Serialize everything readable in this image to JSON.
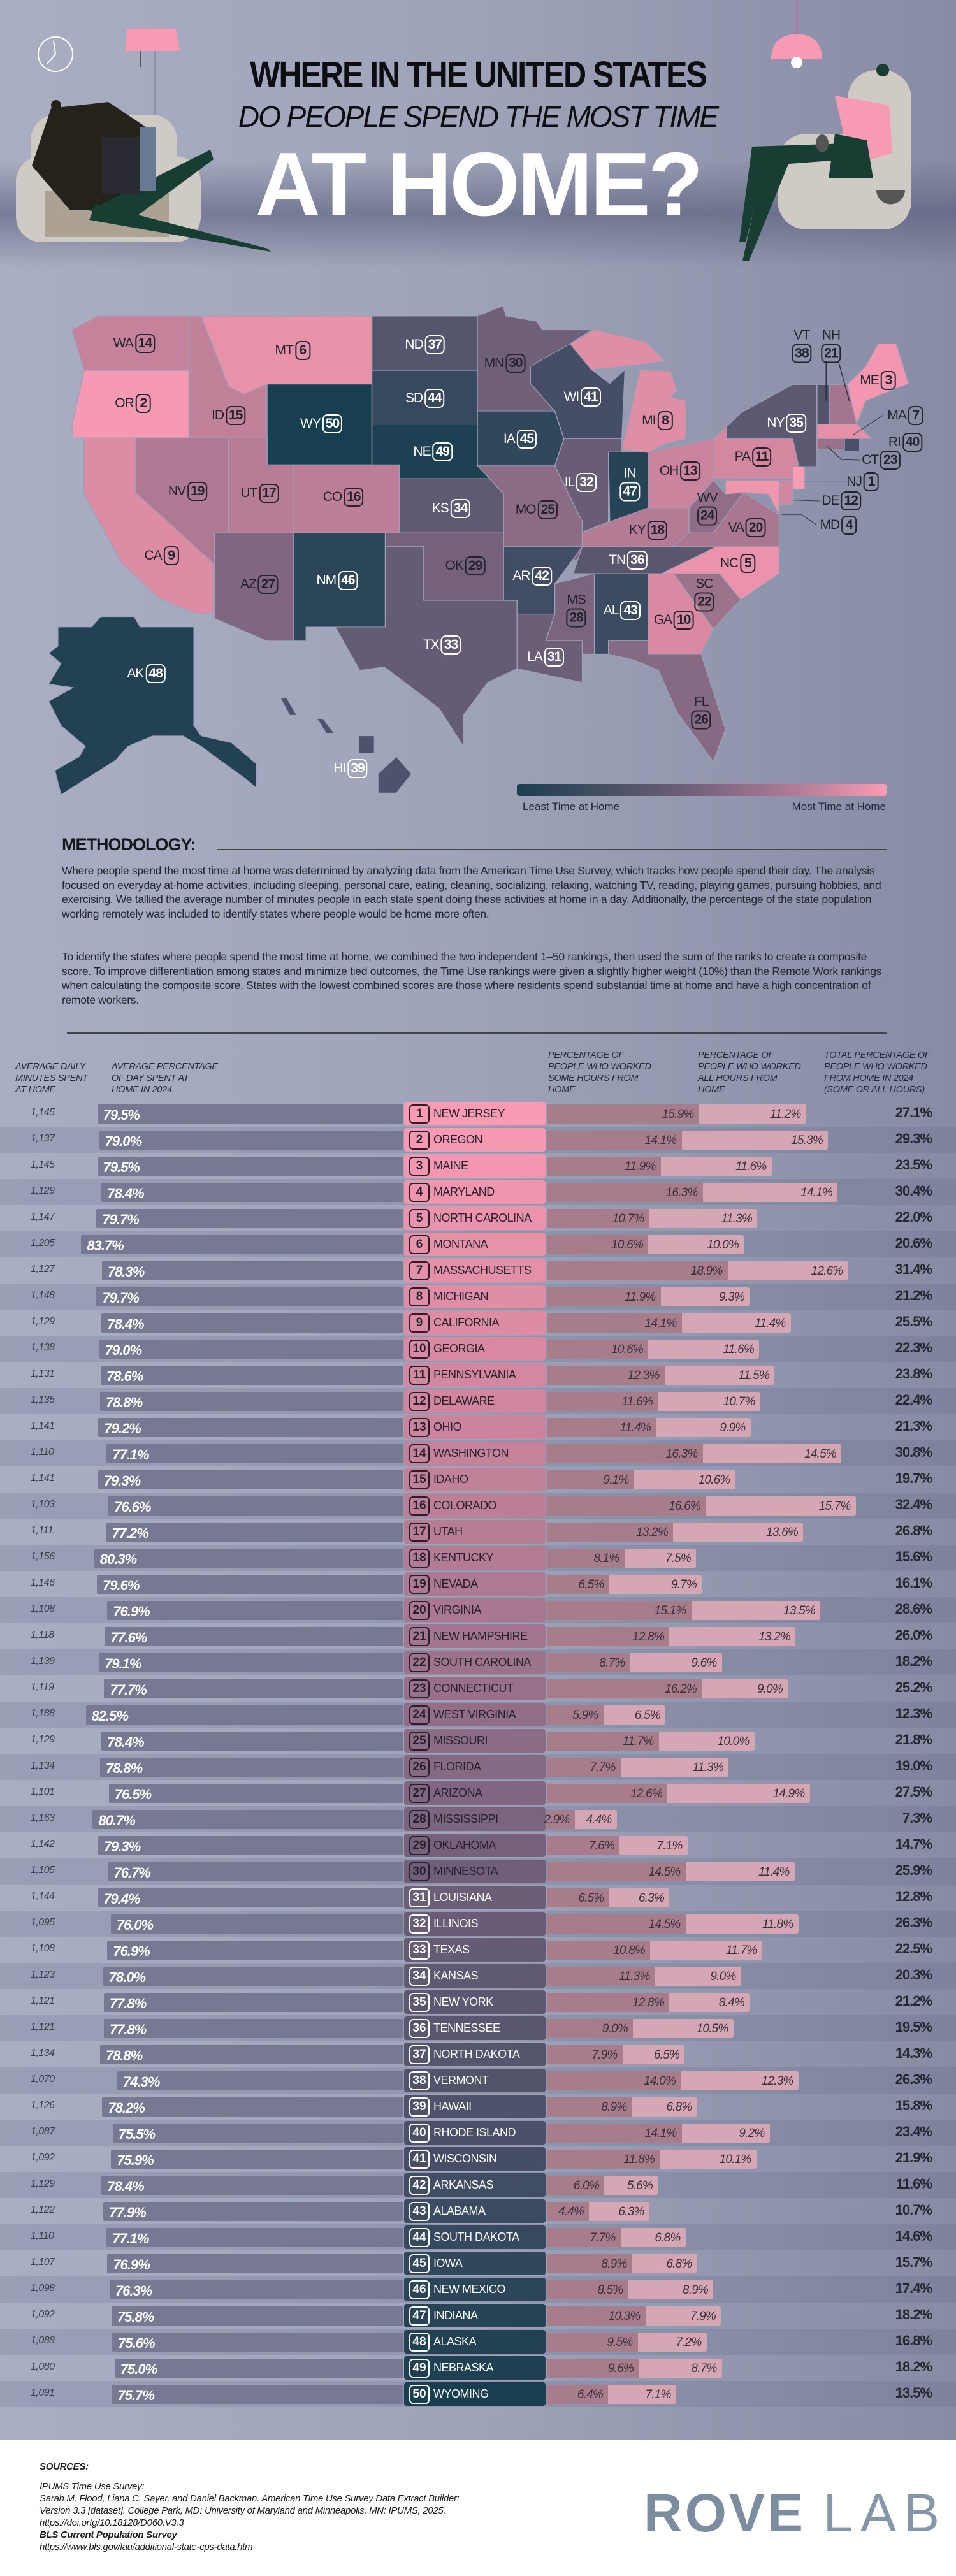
{
  "header": {
    "line1": "WHERE IN THE UNITED STATES",
    "line2": "DO PEOPLE SPEND THE MOST TIME",
    "line3": "AT HOME?"
  },
  "legend": {
    "least": "Least Time at Home",
    "most": "Most Time at Home",
    "colors": [
      "#1c3e4e",
      "#6d5e78",
      "#b07b95",
      "#fa9bb4"
    ]
  },
  "methodology": {
    "title": "METHODOLOGY:",
    "p1": "Where people spend the most time at home was determined by analyzing data from the American Time Use Survey, which tracks how people spend their day. The analysis focused on everyday at-home activities, including sleeping, personal care, eating, cleaning, socializing, relaxing, watching TV, reading, playing games, pursuing hobbies, and exercising. We tallied the average number of minutes people in each state spent doing these activities at home in a day. Additionally, the percentage of the state population working remotely was included to identify states where people would be home more often.",
    "p2": "To identify the states where people spend the most time at home, we combined the two independent 1–50 rankings, then used the sum of the ranks to create a composite score. To improve differentiation among states and minimize tied outcomes, the Time Use rankings were given a slightly higher weight (10%) than the Remote Work rankings when calculating the composite score. States with the lowest combined scores are those where residents spend substantial time at home and have a high concentration of remote workers."
  },
  "table": {
    "headers": {
      "minutes": "AVERAGE DAILY\nMINUTES SPENT\nAT HOME",
      "pct_day": "AVERAGE PERCENTAGE\nOF DAY SPENT AT\nHOME IN 2024",
      "some": "PERCENTAGE OF\nPEOPLE WHO WORKED\nSOME HOURS FROM\nHOME",
      "all": "PERCENTAGE OF\nPEOPLE WHO WORKED\nALL HOURS FROM\nHOME",
      "total": "TOTAL PERCENTAGE OF\nPEOPLE WHO WORKED\nFROM HOME IN 2024\n(SOME OR ALL HOURS)"
    }
  },
  "chart_data": {
    "type": "table",
    "columns": [
      "rank",
      "state",
      "abbr",
      "minutes",
      "pct_day",
      "some",
      "all",
      "total"
    ],
    "rows": [
      {
        "rank": "1",
        "state": "NEW JERSEY",
        "abbr": "NJ",
        "minutes": "1,145",
        "pct_day": "79.5%",
        "some": "15.9%",
        "all": "11.2%",
        "total": "27.1%"
      },
      {
        "rank": "2",
        "state": "OREGON",
        "abbr": "OR",
        "minutes": "1,137",
        "pct_day": "79.0%",
        "some": "14.1%",
        "all": "15.3%",
        "total": "29.3%"
      },
      {
        "rank": "3",
        "state": "MAINE",
        "abbr": "ME",
        "minutes": "1,145",
        "pct_day": "79.5%",
        "some": "11.9%",
        "all": "11.6%",
        "total": "23.5%"
      },
      {
        "rank": "4",
        "state": "MARYLAND",
        "abbr": "MD",
        "minutes": "1,129",
        "pct_day": "78.4%",
        "some": "16.3%",
        "all": "14.1%",
        "total": "30.4%"
      },
      {
        "rank": "5",
        "state": "NORTH CAROLINA",
        "abbr": "NC",
        "minutes": "1,147",
        "pct_day": "79.7%",
        "some": "10.7%",
        "all": "11.3%",
        "total": "22.0%"
      },
      {
        "rank": "6",
        "state": "MONTANA",
        "abbr": "MT",
        "minutes": "1,205",
        "pct_day": "83.7%",
        "some": "10.6%",
        "all": "10.0%",
        "total": "20.6%"
      },
      {
        "rank": "7",
        "state": "MASSACHUSETTS",
        "abbr": "MA",
        "minutes": "1,127",
        "pct_day": "78.3%",
        "some": "18.9%",
        "all": "12.6%",
        "total": "31.4%"
      },
      {
        "rank": "8",
        "state": "MICHIGAN",
        "abbr": "MI",
        "minutes": "1,148",
        "pct_day": "79.7%",
        "some": "11.9%",
        "all": "9.3%",
        "total": "21.2%"
      },
      {
        "rank": "9",
        "state": "CALIFORNIA",
        "abbr": "CA",
        "minutes": "1,129",
        "pct_day": "78.4%",
        "some": "14.1%",
        "all": "11.4%",
        "total": "25.5%"
      },
      {
        "rank": "10",
        "state": "GEORGIA",
        "abbr": "GA",
        "minutes": "1,138",
        "pct_day": "79.0%",
        "some": "10.6%",
        "all": "11.6%",
        "total": "22.3%"
      },
      {
        "rank": "11",
        "state": "PENNSYLVANIA",
        "abbr": "PA",
        "minutes": "1,131",
        "pct_day": "78.6%",
        "some": "12.3%",
        "all": "11.5%",
        "total": "23.8%"
      },
      {
        "rank": "12",
        "state": "DELAWARE",
        "abbr": "DE",
        "minutes": "1,135",
        "pct_day": "78.8%",
        "some": "11.6%",
        "all": "10.7%",
        "total": "22.4%"
      },
      {
        "rank": "13",
        "state": "OHIO",
        "abbr": "OH",
        "minutes": "1,141",
        "pct_day": "79.2%",
        "some": "11.4%",
        "all": "9.9%",
        "total": "21.3%"
      },
      {
        "rank": "14",
        "state": "WASHINGTON",
        "abbr": "WA",
        "minutes": "1,110",
        "pct_day": "77.1%",
        "some": "16.3%",
        "all": "14.5%",
        "total": "30.8%"
      },
      {
        "rank": "15",
        "state": "IDAHO",
        "abbr": "ID",
        "minutes": "1,141",
        "pct_day": "79.3%",
        "some": "9.1%",
        "all": "10.6%",
        "total": "19.7%"
      },
      {
        "rank": "16",
        "state": "COLORADO",
        "abbr": "CO",
        "minutes": "1,103",
        "pct_day": "76.6%",
        "some": "16.6%",
        "all": "15.7%",
        "total": "32.4%"
      },
      {
        "rank": "17",
        "state": "UTAH",
        "abbr": "UT",
        "minutes": "1,111",
        "pct_day": "77.2%",
        "some": "13.2%",
        "all": "13.6%",
        "total": "26.8%"
      },
      {
        "rank": "18",
        "state": "KENTUCKY",
        "abbr": "KY",
        "minutes": "1,156",
        "pct_day": "80.3%",
        "some": "8.1%",
        "all": "7.5%",
        "total": "15.6%"
      },
      {
        "rank": "19",
        "state": "NEVADA",
        "abbr": "NV",
        "minutes": "1,146",
        "pct_day": "79.6%",
        "some": "6.5%",
        "all": "9.7%",
        "total": "16.1%"
      },
      {
        "rank": "20",
        "state": "VIRGINIA",
        "abbr": "VA",
        "minutes": "1,108",
        "pct_day": "76.9%",
        "some": "15.1%",
        "all": "13.5%",
        "total": "28.6%"
      },
      {
        "rank": "21",
        "state": "NEW HAMPSHIRE",
        "abbr": "NH",
        "minutes": "1,118",
        "pct_day": "77.6%",
        "some": "12.8%",
        "all": "13.2%",
        "total": "26.0%"
      },
      {
        "rank": "22",
        "state": "SOUTH CAROLINA",
        "abbr": "SC",
        "minutes": "1,139",
        "pct_day": "79.1%",
        "some": "8.7%",
        "all": "9.6%",
        "total": "18.2%"
      },
      {
        "rank": "23",
        "state": "CONNECTICUT",
        "abbr": "CT",
        "minutes": "1,119",
        "pct_day": "77.7%",
        "some": "16.2%",
        "all": "9.0%",
        "total": "25.2%"
      },
      {
        "rank": "24",
        "state": "WEST VIRGINIA",
        "abbr": "WV",
        "minutes": "1,188",
        "pct_day": "82.5%",
        "some": "5.9%",
        "all": "6.5%",
        "total": "12.3%"
      },
      {
        "rank": "25",
        "state": "MISSOURI",
        "abbr": "MO",
        "minutes": "1,129",
        "pct_day": "78.4%",
        "some": "11.7%",
        "all": "10.0%",
        "total": "21.8%"
      },
      {
        "rank": "26",
        "state": "FLORIDA",
        "abbr": "FL",
        "minutes": "1,134",
        "pct_day": "78.8%",
        "some": "7.7%",
        "all": "11.3%",
        "total": "19.0%"
      },
      {
        "rank": "27",
        "state": "ARIZONA",
        "abbr": "AZ",
        "minutes": "1,101",
        "pct_day": "76.5%",
        "some": "12.6%",
        "all": "14.9%",
        "total": "27.5%"
      },
      {
        "rank": "28",
        "state": "MISSISSIPPI",
        "abbr": "MS",
        "minutes": "1,163",
        "pct_day": "80.7%",
        "some": "2.9%",
        "all": "4.4%",
        "total": "7.3%"
      },
      {
        "rank": "29",
        "state": "OKLAHOMA",
        "abbr": "OK",
        "minutes": "1,142",
        "pct_day": "79.3%",
        "some": "7.6%",
        "all": "7.1%",
        "total": "14.7%"
      },
      {
        "rank": "30",
        "state": "MINNESOTA",
        "abbr": "MN",
        "minutes": "1,105",
        "pct_day": "76.7%",
        "some": "14.5%",
        "all": "11.4%",
        "total": "25.9%"
      },
      {
        "rank": "31",
        "state": "LOUISIANA",
        "abbr": "LA",
        "minutes": "1,144",
        "pct_day": "79.4%",
        "some": "6.5%",
        "all": "6.3%",
        "total": "12.8%"
      },
      {
        "rank": "32",
        "state": "ILLINOIS",
        "abbr": "IL",
        "minutes": "1,095",
        "pct_day": "76.0%",
        "some": "14.5%",
        "all": "11.8%",
        "total": "26.3%"
      },
      {
        "rank": "33",
        "state": "TEXAS",
        "abbr": "TX",
        "minutes": "1,108",
        "pct_day": "76.9%",
        "some": "10.8%",
        "all": "11.7%",
        "total": "22.5%"
      },
      {
        "rank": "34",
        "state": "KANSAS",
        "abbr": "KS",
        "minutes": "1,123",
        "pct_day": "78.0%",
        "some": "11.3%",
        "all": "9.0%",
        "total": "20.3%"
      },
      {
        "rank": "35",
        "state": "NEW YORK",
        "abbr": "NY",
        "minutes": "1,121",
        "pct_day": "77.8%",
        "some": "12.8%",
        "all": "8.4%",
        "total": "21.2%"
      },
      {
        "rank": "36",
        "state": "TENNESSEE",
        "abbr": "TN",
        "minutes": "1,121",
        "pct_day": "77.8%",
        "some": "9.0%",
        "all": "10.5%",
        "total": "19.5%"
      },
      {
        "rank": "37",
        "state": "NORTH DAKOTA",
        "abbr": "ND",
        "minutes": "1,134",
        "pct_day": "78.8%",
        "some": "7.9%",
        "all": "6.5%",
        "total": "14.3%"
      },
      {
        "rank": "38",
        "state": "VERMONT",
        "abbr": "VT",
        "minutes": "1,070",
        "pct_day": "74.3%",
        "some": "14.0%",
        "all": "12.3%",
        "total": "26.3%"
      },
      {
        "rank": "39",
        "state": "HAWAII",
        "abbr": "HI",
        "minutes": "1,126",
        "pct_day": "78.2%",
        "some": "8.9%",
        "all": "6.8%",
        "total": "15.8%"
      },
      {
        "rank": "40",
        "state": "RHODE ISLAND",
        "abbr": "RI",
        "minutes": "1,087",
        "pct_day": "75.5%",
        "some": "14.1%",
        "all": "9.2%",
        "total": "23.4%"
      },
      {
        "rank": "41",
        "state": "WISCONSIN",
        "abbr": "WI",
        "minutes": "1,092",
        "pct_day": "75.9%",
        "some": "11.8%",
        "all": "10.1%",
        "total": "21.9%"
      },
      {
        "rank": "42",
        "state": "ARKANSAS",
        "abbr": "AR",
        "minutes": "1,129",
        "pct_day": "78.4%",
        "some": "6.0%",
        "all": "5.6%",
        "total": "11.6%"
      },
      {
        "rank": "43",
        "state": "ALABAMA",
        "abbr": "AL",
        "minutes": "1,122",
        "pct_day": "77.9%",
        "some": "4.4%",
        "all": "6.3%",
        "total": "10.7%"
      },
      {
        "rank": "44",
        "state": "SOUTH DAKOTA",
        "abbr": "SD",
        "minutes": "1,110",
        "pct_day": "77.1%",
        "some": "7.7%",
        "all": "6.8%",
        "total": "14.6%"
      },
      {
        "rank": "45",
        "state": "IOWA",
        "abbr": "IA",
        "minutes": "1,107",
        "pct_day": "76.9%",
        "some": "8.9%",
        "all": "6.8%",
        "total": "15.7%"
      },
      {
        "rank": "46",
        "state": "NEW MEXICO",
        "abbr": "NM",
        "minutes": "1,098",
        "pct_day": "76.3%",
        "some": "8.5%",
        "all": "8.9%",
        "total": "17.4%"
      },
      {
        "rank": "47",
        "state": "INDIANA",
        "abbr": "IN",
        "minutes": "1,092",
        "pct_day": "75.8%",
        "some": "10.3%",
        "all": "7.9%",
        "total": "18.2%"
      },
      {
        "rank": "48",
        "state": "ALASKA",
        "abbr": "AK",
        "minutes": "1,088",
        "pct_day": "75.6%",
        "some": "9.5%",
        "all": "7.2%",
        "total": "16.8%"
      },
      {
        "rank": "49",
        "state": "NEBRASKA",
        "abbr": "NE",
        "minutes": "1,080",
        "pct_day": "75.0%",
        "some": "9.6%",
        "all": "8.7%",
        "total": "18.2%"
      },
      {
        "rank": "50",
        "state": "WYOMING",
        "abbr": "WY",
        "minutes": "1,091",
        "pct_day": "75.7%",
        "some": "6.4%",
        "all": "7.1%",
        "total": "13.5%"
      }
    ]
  },
  "sources": {
    "title": "SOURCES:",
    "s1_title": "IPUMS Time Use Survey:",
    "s1_l1": "Sarah M. Flood, Liana C. Sayer, and Daniel Backman. American Time Use Survey Data Extract Builder:",
    "s1_l2": "Version 3.3 [dataset]. College Park, MD: University of Maryland and Minneapolis, MN: IPUMS, 2025.",
    "s1_l3": "https://doi.ortg/10.18128/D060.V3.3",
    "s2_title": "BLS Current Population Survey",
    "s2_l1": "https://www.bls.gov/lau/additional-state-cps-data.htm"
  },
  "logo": {
    "part1": "ROVE",
    "part2": "LAB"
  }
}
